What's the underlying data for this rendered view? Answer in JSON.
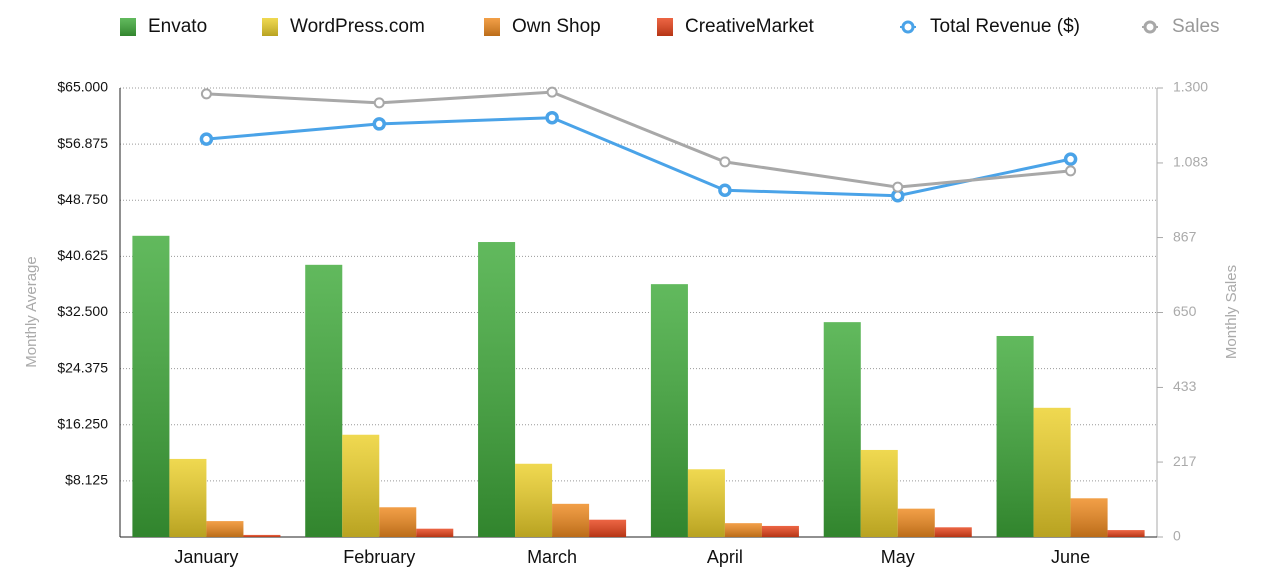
{
  "chart_data": {
    "type": "bar",
    "categories": [
      "January",
      "February",
      "March",
      "April",
      "May",
      "June"
    ],
    "series": [
      {
        "name": "Envato",
        "type": "bar",
        "color": "#3faa3a",
        "values": [
          43600,
          39400,
          42700,
          36600,
          31100,
          29100
        ]
      },
      {
        "name": "WordPress.com",
        "type": "bar",
        "color": "#ecd02a",
        "values": [
          11300,
          14800,
          10600,
          9800,
          12600,
          18700
        ]
      },
      {
        "name": "Own Shop",
        "type": "bar",
        "color": "#ef8a1f",
        "values": [
          2300,
          4300,
          4800,
          2000,
          4100,
          5600
        ]
      },
      {
        "name": "CreativeMarket",
        "type": "bar",
        "color": "#e8431a",
        "values": [
          300,
          1200,
          2500,
          1600,
          1400,
          1000
        ]
      },
      {
        "name": "Total Revenue ($)",
        "type": "line",
        "color": "#4aa3e8",
        "values": [
          57600,
          59800,
          60700,
          50200,
          49400,
          54700
        ]
      },
      {
        "name": "Sales",
        "type": "line",
        "axis": "y2",
        "color": "#a8a8a8",
        "values": [
          1283,
          1257,
          1288,
          1086,
          1013,
          1060
        ]
      }
    ],
    "ylabel": "Monthly Average",
    "y2label": "Monthly Sales",
    "ylim": [
      0,
      65000
    ],
    "yticks": [
      {
        "value": 8125,
        "label": "$8.125"
      },
      {
        "value": 16250,
        "label": "$16.250"
      },
      {
        "value": 24375,
        "label": "$24.375"
      },
      {
        "value": 32500,
        "label": "$32.500"
      },
      {
        "value": 40625,
        "label": "$40.625"
      },
      {
        "value": 48750,
        "label": "$48.750"
      },
      {
        "value": 56875,
        "label": "$56.875"
      },
      {
        "value": 65000,
        "label": "$65.000"
      }
    ],
    "y2lim": [
      0,
      1300
    ],
    "y2ticks": [
      0,
      217,
      433,
      650,
      867,
      {
        "value": 1083,
        "label": "1.083"
      },
      {
        "value": 1300,
        "label": "1.300"
      }
    ],
    "grid": true,
    "legend": "top"
  }
}
